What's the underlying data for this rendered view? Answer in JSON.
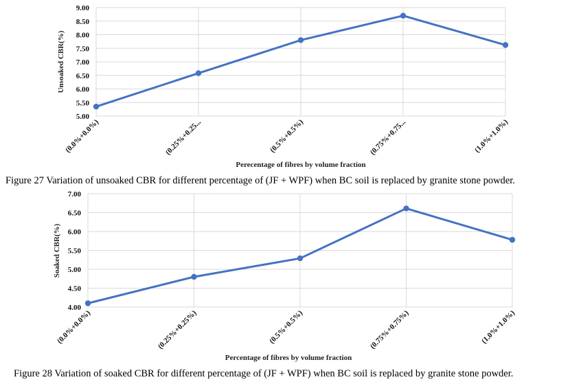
{
  "chart_data": [
    {
      "type": "line",
      "categories": [
        "(0.0%+0.0%)",
        "(0.25%+0.25...",
        "(0.5%+0.5%)",
        "(0.75%+0.75...",
        "(1.0%+1.0%)"
      ],
      "series": [
        {
          "values": [
            5.35,
            6.58,
            7.8,
            8.7,
            7.62
          ]
        }
      ],
      "ylabel": "Unsoaked CBR(%)",
      "xlabel": "Perecentage of fibres by volume fraction",
      "ylim": [
        5.0,
        9.0
      ],
      "yticks": [
        "5.00",
        "5.50",
        "6.00",
        "6.50",
        "7.00",
        "7.50",
        "8.00",
        "8.50",
        "9.00"
      ],
      "color": "#4472c4",
      "grid": true
    },
    {
      "type": "line",
      "categories": [
        "(0.0%+0.0%)",
        "(0.25%+0.25%)",
        "(0.5%+0.5%)",
        "(0.75%+0.75%)",
        "(1.0%+1.0%)"
      ],
      "series": [
        {
          "values": [
            4.1,
            4.8,
            5.29,
            6.61,
            5.78
          ]
        }
      ],
      "ylabel": "Soaked CBR(%)",
      "xlabel": "Percentage of fibres by volume fraction",
      "ylim": [
        4.0,
        7.0
      ],
      "yticks": [
        "4.00",
        "4.50",
        "5.00",
        "5.50",
        "6.00",
        "6.50",
        "7.00"
      ],
      "color": "#4472c4",
      "grid": true
    }
  ],
  "captions": {
    "fig27": "Figure 27 Variation of unsoaked CBR for different percentage of  (JF + WPF) when BC soil is replaced by granite stone powder.",
    "fig28": "Figure 28 Variation of soaked CBR for different percentage of (JF + WPF) when BC soil is replaced by granite stone powder."
  }
}
